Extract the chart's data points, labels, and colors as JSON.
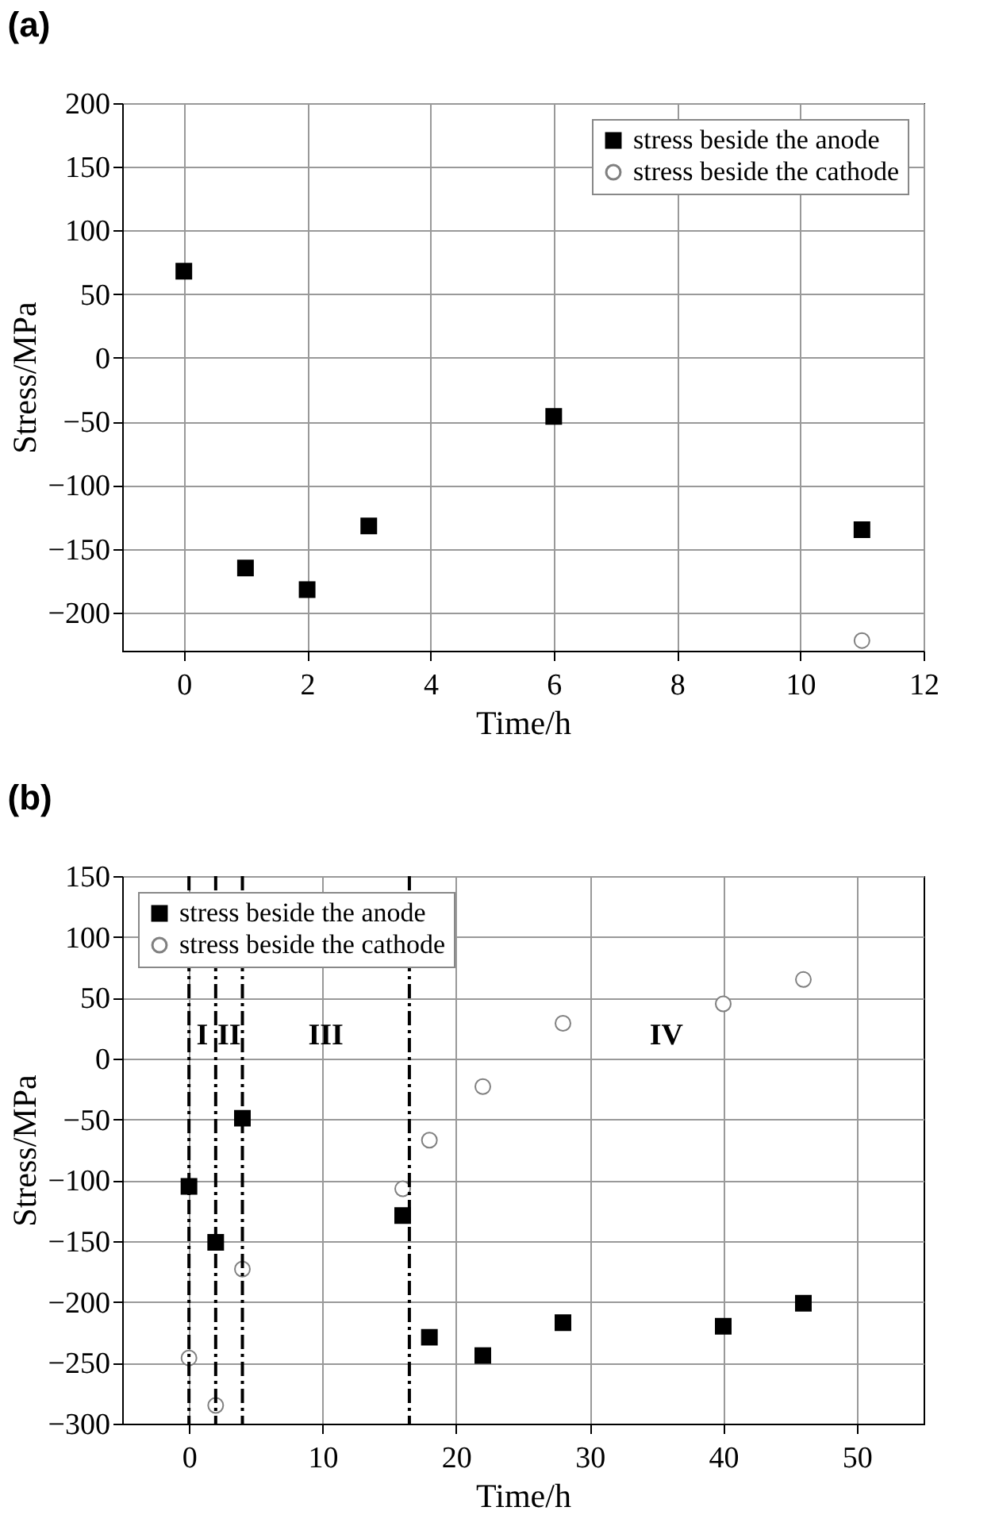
{
  "chart_data": [
    {
      "type": "scatter",
      "title": "(a)",
      "xlabel": "Time/h",
      "ylabel": "Stress/MPa",
      "xlim": [
        -1,
        12
      ],
      "xticks": [
        0,
        2,
        4,
        6,
        8,
        10,
        12
      ],
      "ylim": [
        -230,
        200
      ],
      "yticks": [
        -200,
        -150,
        -100,
        -50,
        0,
        50,
        100,
        150,
        200
      ],
      "grid": true,
      "legend": "top right",
      "series": [
        {
          "name": "stress beside the anode",
          "color": "#000000",
          "marker": "square",
          "x": [
            0,
            1,
            2,
            3,
            6,
            11
          ],
          "values": [
            68,
            -165,
            -182,
            -132,
            -46,
            -135
          ]
        },
        {
          "name": "stress beside the cathode",
          "color": "#808080",
          "marker": "circle",
          "x": [
            11
          ],
          "values": [
            -222
          ]
        }
      ]
    },
    {
      "type": "scatter",
      "title": "(b)",
      "xlabel": "Time/h",
      "ylabel": "Stress/MPa",
      "xlim": [
        -5,
        55
      ],
      "xticks": [
        0,
        10,
        20,
        30,
        40,
        50
      ],
      "ylim": [
        -300,
        150
      ],
      "yticks": [
        -300,
        -250,
        -200,
        -150,
        -100,
        -50,
        0,
        50,
        100,
        150
      ],
      "grid": true,
      "legend": "top left",
      "series": [
        {
          "name": "stress beside the anode",
          "color": "#000000",
          "marker": "square",
          "x": [
            0,
            2,
            4,
            16,
            18,
            22,
            28,
            40,
            46
          ],
          "values": [
            -105,
            -151,
            -49,
            -129,
            -229,
            -244,
            -217,
            -220,
            -201
          ]
        },
        {
          "name": "stress beside the cathode",
          "color": "#808080",
          "marker": "circle",
          "x": [
            0,
            2,
            4,
            16,
            18,
            22,
            28,
            40,
            46
          ],
          "values": [
            -246,
            -285,
            -173,
            -107,
            -67,
            -23,
            29,
            45,
            65
          ]
        }
      ],
      "ref_lines": [
        {
          "axis": "x",
          "value": 0,
          "line_style": "dashdot",
          "color": "#000000"
        },
        {
          "axis": "x",
          "value": 2,
          "line_style": "dashdot",
          "color": "#000000"
        },
        {
          "axis": "x",
          "value": 4,
          "line_style": "dashdot",
          "color": "#000000"
        },
        {
          "axis": "x",
          "value": 16.5,
          "line_style": "dashdot",
          "color": "#000000"
        }
      ],
      "annotations": [
        "I",
        "II",
        "III",
        "IV"
      ]
    }
  ]
}
